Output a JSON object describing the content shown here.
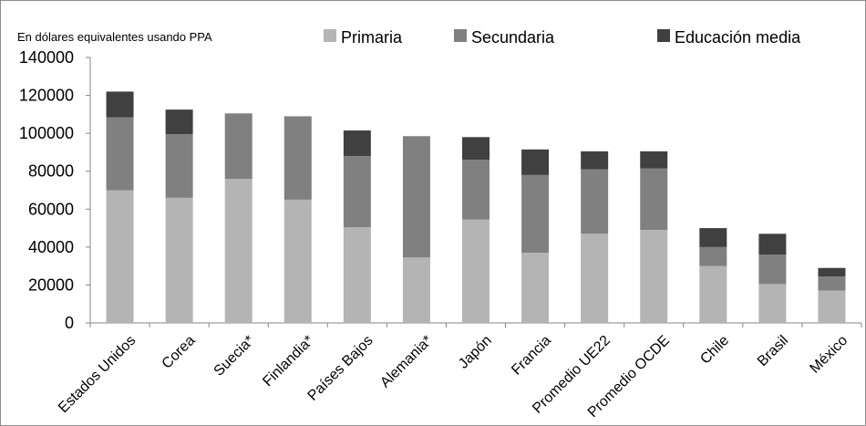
{
  "chart_data": {
    "type": "bar",
    "stacked": true,
    "subtitle": "En dólares equivalentes usando PPA",
    "categories": [
      "Estados Unidos",
      "Corea",
      "Suecia*",
      "Finlandia*",
      "Países Bajos",
      "Alemania*",
      "Japón",
      "Francia",
      "Promedio UE22",
      "Promedio OCDE",
      "Chile",
      "Brasil",
      "México"
    ],
    "series": [
      {
        "name": "Primaria",
        "color": "#b4b4b4",
        "values": [
          70000,
          66000,
          76000,
          65000,
          50500,
          34500,
          54500,
          37000,
          47000,
          49000,
          30000,
          20500,
          17000
        ]
      },
      {
        "name": "Secundaria",
        "color": "#808080",
        "values": [
          38500,
          33500,
          34500,
          44000,
          37500,
          64000,
          31500,
          41000,
          34000,
          32500,
          10000,
          15500,
          7500
        ]
      },
      {
        "name": "Educación media",
        "color": "#404040",
        "values": [
          13500,
          13000,
          0,
          0,
          13500,
          0,
          12000,
          13500,
          9500,
          9000,
          10000,
          11000,
          4500
        ]
      }
    ],
    "ylim": [
      0,
      140000
    ],
    "yticks": [
      0,
      20000,
      40000,
      60000,
      80000,
      100000,
      120000,
      140000
    ],
    "grid": false,
    "legend": "top"
  }
}
